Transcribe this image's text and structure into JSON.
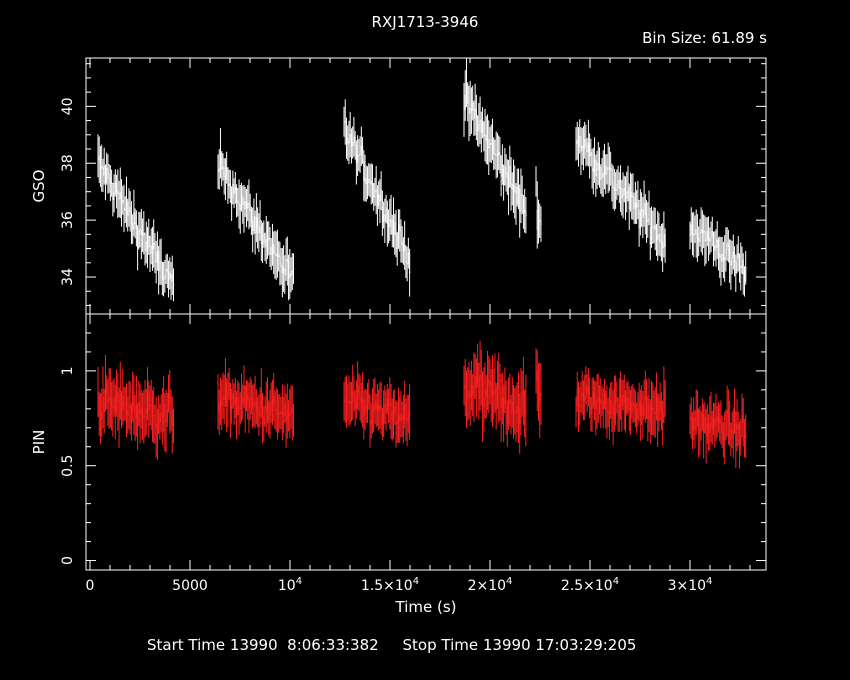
{
  "header": {
    "title": "RXJ1713-3946",
    "bin_size_label": "Bin Size: 61.89 s"
  },
  "footer": {
    "start_label": "Start Time",
    "start_value": "13990  8:06:33:382",
    "stop_label": "Stop Time",
    "stop_value": "13990 17:03:29:205"
  },
  "colors": {
    "background": "#000000",
    "axes": "#ffffff",
    "gso": "#ffffff",
    "pin": "#ff2020"
  },
  "chart_data": [
    {
      "type": "line",
      "panel": "top",
      "ylabel": "GSO",
      "xlabel": "",
      "xlim": [
        -200,
        33800
      ],
      "ylim": [
        32.7,
        41.7
      ],
      "yticks": [
        34,
        36,
        38,
        40
      ],
      "ytick_labels": [
        "34",
        "36",
        "38",
        "40"
      ],
      "series": [
        {
          "color": "#ffffff",
          "segments": [
            {
              "x": [
                400,
                4200
              ],
              "y": [
                38.0,
                33.6
              ],
              "noise": 0.85
            },
            {
              "x": [
                6400,
                10200
              ],
              "y": [
                37.9,
                33.8
              ],
              "noise": 0.85
            },
            {
              "x": [
                12700,
                16000
              ],
              "y": [
                39.2,
                34.6
              ],
              "noise": 0.85
            },
            {
              "x": [
                18700,
                21800
              ],
              "y": [
                40.3,
                36.3
              ],
              "noise": 0.95
            },
            {
              "x": [
                22300,
                22600
              ],
              "y": [
                36.8,
                35.2
              ],
              "noise": 0.9
            },
            {
              "x": [
                24300,
                28800
              ],
              "y": [
                38.9,
                35.2
              ],
              "noise": 0.85
            },
            {
              "x": [
                30000,
                32800
              ],
              "y": [
                35.8,
                34.2
              ],
              "noise": 0.85
            }
          ]
        }
      ]
    },
    {
      "type": "line",
      "panel": "bottom",
      "ylabel": "PIN",
      "xlabel": "Time (s)",
      "xlim": [
        -200,
        33800
      ],
      "ylim": [
        -0.05,
        1.3
      ],
      "yticks": [
        0,
        0.5,
        1
      ],
      "ytick_labels": [
        "0",
        "0.5",
        "1"
      ],
      "xticks": [
        0,
        5000,
        10000,
        15000,
        20000,
        25000,
        30000
      ],
      "xtick_labels": [
        {
          "base": "0",
          "exp": ""
        },
        {
          "base": "5000",
          "exp": ""
        },
        {
          "base": "10",
          "exp": "4"
        },
        {
          "base": "1.5×10",
          "exp": "4"
        },
        {
          "base": "2×10",
          "exp": "4"
        },
        {
          "base": "2.5×10",
          "exp": "4"
        },
        {
          "base": "3×10",
          "exp": "4"
        }
      ],
      "series": [
        {
          "color": "#ff2020",
          "segments": [
            {
              "x": [
                400,
                4200
              ],
              "y": [
                0.84,
                0.76
              ],
              "noise": 0.16
            },
            {
              "x": [
                6400,
                10200
              ],
              "y": [
                0.86,
                0.76
              ],
              "noise": 0.14
            },
            {
              "x": [
                12700,
                16000
              ],
              "y": [
                0.84,
                0.74
              ],
              "noise": 0.14
            },
            {
              "x": [
                18700,
                21800
              ],
              "y": [
                0.92,
                0.8
              ],
              "noise": 0.18
            },
            {
              "x": [
                22300,
                22600
              ],
              "y": [
                0.95,
                0.85
              ],
              "noise": 0.2
            },
            {
              "x": [
                24300,
                28800
              ],
              "y": [
                0.85,
                0.8
              ],
              "noise": 0.14
            },
            {
              "x": [
                30000,
                32800
              ],
              "y": [
                0.73,
                0.68
              ],
              "noise": 0.14
            }
          ]
        }
      ]
    }
  ]
}
